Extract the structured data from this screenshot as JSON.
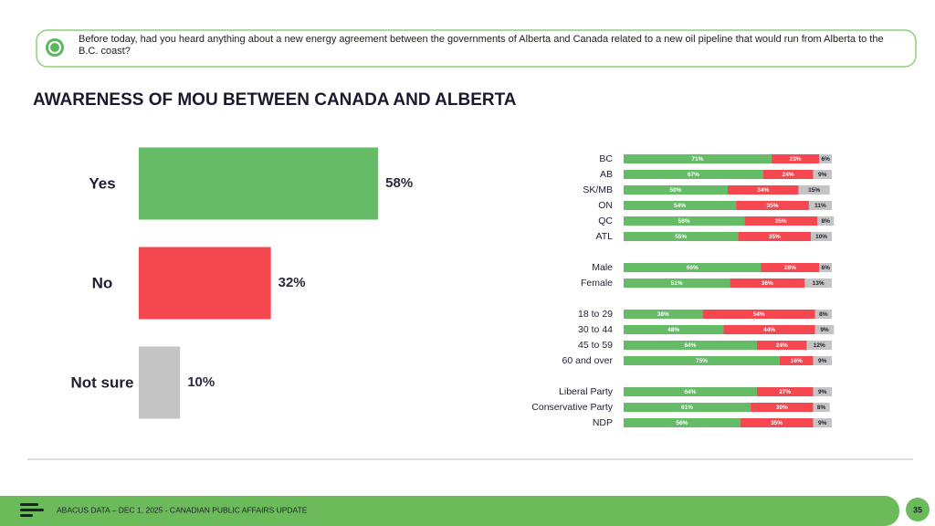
{
  "question": "Before today, had you heard anything about a new energy agreement between the governments of Alberta and Canada related to a new oil pipeline that would run from Alberta to the B.C. coast?",
  "footer": "ABACUS DATA  – DEC 1, 2025 - CANADIAN PUBLIC AFFAIRS UPDATE",
  "page_number": "35",
  "chart_data": [
    {
      "type": "bar",
      "orientation": "horizontal",
      "title": "AWARENESS OF MOU BETWEEN CANADA AND ALBERTA",
      "categories": [
        "Yes",
        "No",
        "Not sure"
      ],
      "values": [
        58,
        32,
        10
      ],
      "value_labels": [
        "58%",
        "32%",
        "10%"
      ],
      "colors": [
        "#66bb66",
        "#f5474f",
        "#c4c4c4"
      ],
      "xlim": [
        0,
        100
      ]
    },
    {
      "type": "stacked_bar",
      "orientation": "horizontal",
      "categories": [
        "BC",
        "AB",
        "SK/MB",
        "ON",
        "QC",
        "ATL",
        null,
        "Male",
        "Female",
        null,
        "18 to 29",
        "30 to 44",
        "45 to 59",
        "60 and over",
        null,
        "Liberal Party",
        "Conservative Party",
        "NDP"
      ],
      "series": [
        {
          "color": "#66bb66",
          "values": [
            71,
            67,
            50,
            54,
            58,
            55,
            null,
            66,
            51,
            null,
            38,
            48,
            64,
            75,
            null,
            64,
            61,
            56
          ],
          "value_labels": [
            "71%",
            "67%",
            "50%",
            "54%",
            "58%",
            "55%",
            null,
            "66%",
            "51%",
            null,
            "38%",
            "48%",
            "64%",
            "75%",
            null,
            "64%",
            "61%",
            "56%"
          ]
        },
        {
          "color": "#f5474f",
          "values": [
            23,
            24,
            34,
            35,
            35,
            35,
            null,
            28,
            36,
            null,
            54,
            44,
            24,
            16,
            null,
            27,
            30,
            35
          ],
          "value_labels": [
            "23%",
            "24%",
            "34%",
            "35%",
            "35%",
            "35%",
            null,
            "28%",
            "36%",
            null,
            "54%",
            "44%",
            "24%",
            "16%",
            null,
            "27%",
            "30%",
            "35%"
          ]
        },
        {
          "color": "#c4c4c4",
          "values": [
            6,
            9,
            15,
            11,
            8,
            10,
            null,
            6,
            13,
            null,
            8,
            9,
            12,
            9,
            null,
            9,
            8,
            9
          ],
          "value_labels": [
            "6%",
            "9%",
            "15%",
            "11%",
            "8%",
            "10%",
            null,
            "6%",
            "13%",
            null,
            "8%",
            "9%",
            "12%",
            "9%",
            null,
            "9%",
            "8%",
            "9%"
          ]
        }
      ],
      "xlim": [
        0,
        100
      ]
    }
  ]
}
